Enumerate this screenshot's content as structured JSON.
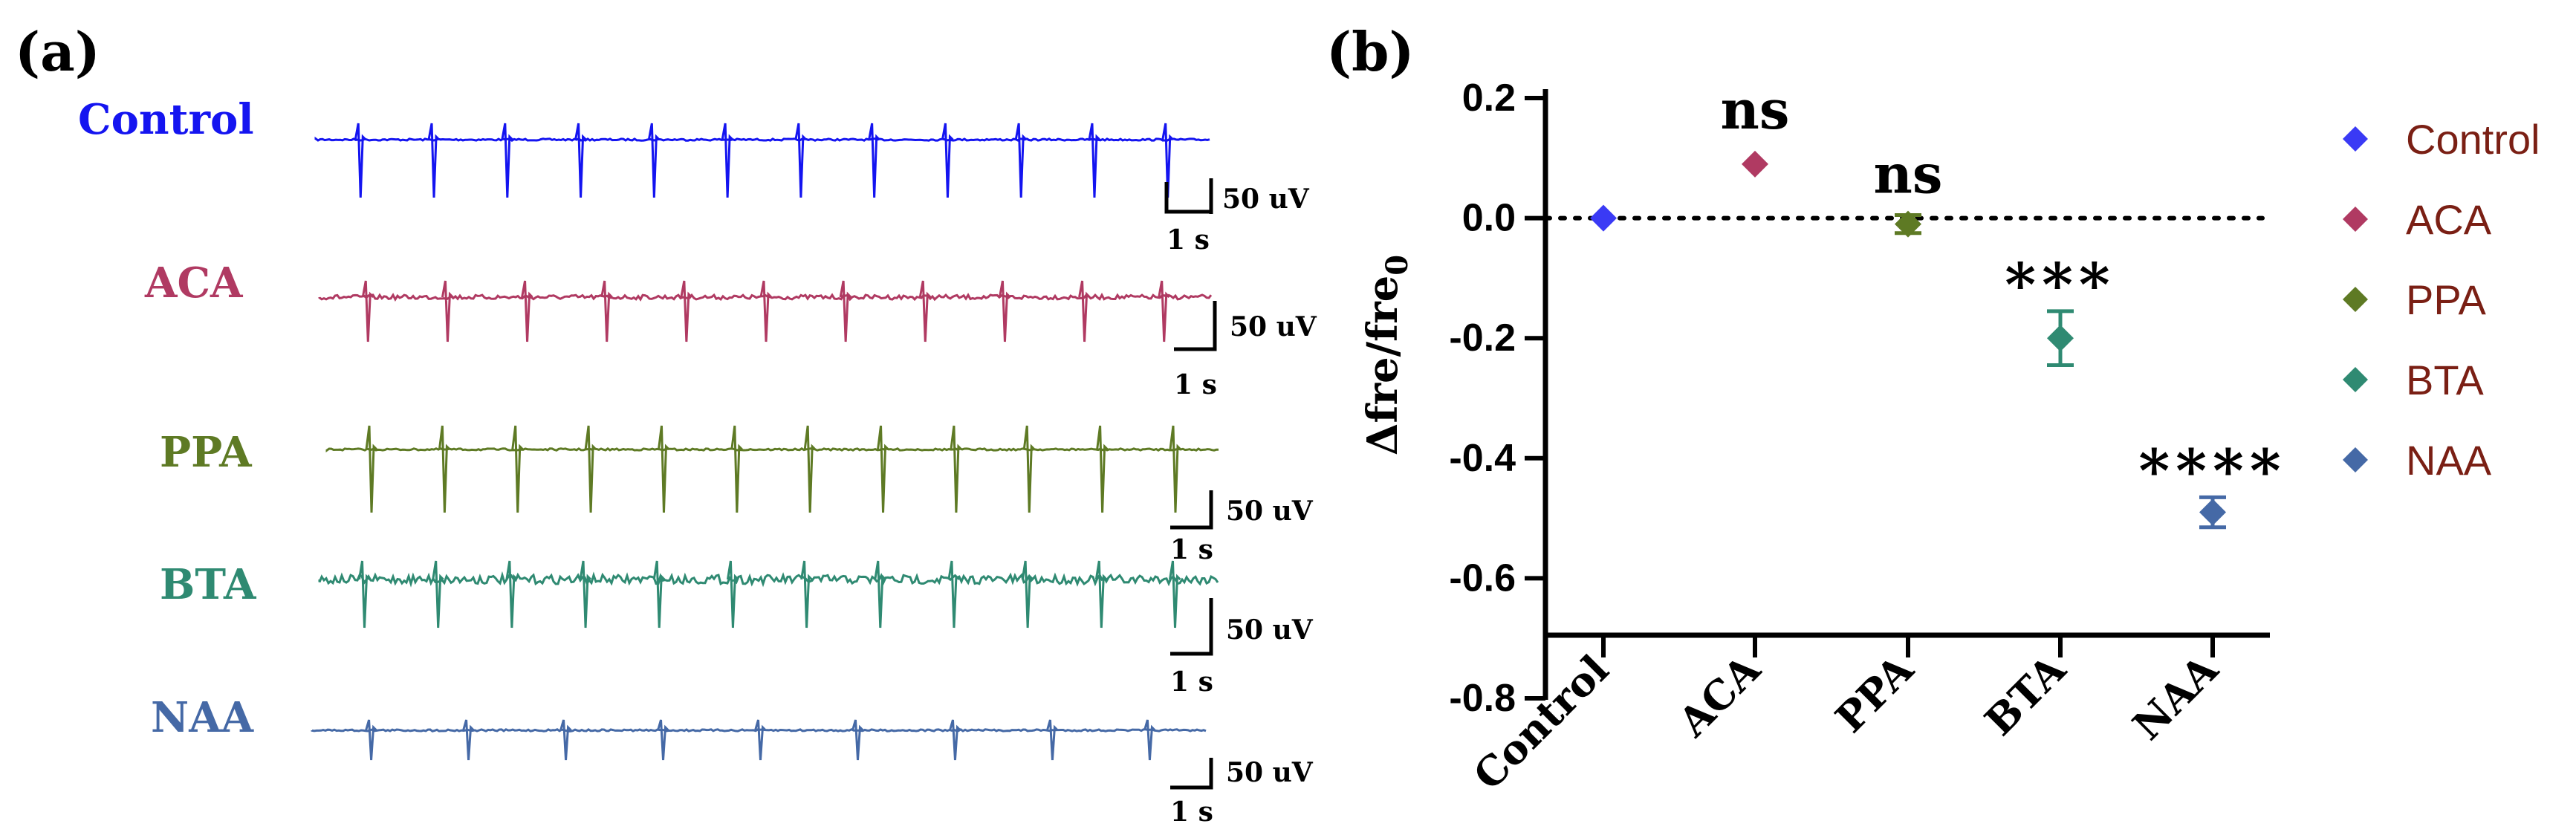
{
  "panel_a": {
    "label": "(a)",
    "traces": [
      {
        "name": "Control",
        "color": "#1414f0",
        "spikes": 12,
        "polarity": "down",
        "noise": "low"
      },
      {
        "name": "ACA",
        "color": "#b03a62",
        "spikes": 11,
        "polarity": "down",
        "noise": "medium"
      },
      {
        "name": "PPA",
        "color": "#5e7a24",
        "spikes": 12,
        "polarity": "down",
        "noise": "low"
      },
      {
        "name": "BTA",
        "color": "#2f8a72",
        "spikes": 12,
        "polarity": "down",
        "noise": "high"
      },
      {
        "name": "NAA",
        "color": "#4569a6",
        "spikes": 9,
        "polarity": "down",
        "noise": "low"
      }
    ],
    "scale_bar": {
      "amplitude": "50 uV",
      "time": "1 s"
    }
  },
  "panel_b": {
    "label": "(b)",
    "legend_text_color": "#7a1f14",
    "chart_data": {
      "type": "scatter",
      "categories": [
        "Control",
        "ACA",
        "PPA",
        "BTA",
        "NAA"
      ],
      "values": [
        0.0,
        0.09,
        -0.01,
        -0.2,
        -0.49
      ],
      "errors": [
        0.0,
        0.0,
        0.015,
        0.045,
        0.025
      ],
      "significance": [
        "",
        "ns",
        "ns",
        "***",
        "****"
      ],
      "colors": [
        "#3a3af5",
        "#b03a62",
        "#5e7a24",
        "#2f8a72",
        "#4569a6"
      ],
      "ylabel_main": "Δfre/fre",
      "ylabel_sub": "0",
      "xlabel": "",
      "ylim": [
        -0.8,
        0.2
      ],
      "yticks": [
        "0.2",
        "0.0",
        "-0.2",
        "-0.4",
        "-0.6",
        "-0.8"
      ],
      "reference_line": 0.0,
      "legend": [
        "Control",
        "ACA",
        "PPA",
        "BTA",
        "NAA"
      ]
    }
  }
}
